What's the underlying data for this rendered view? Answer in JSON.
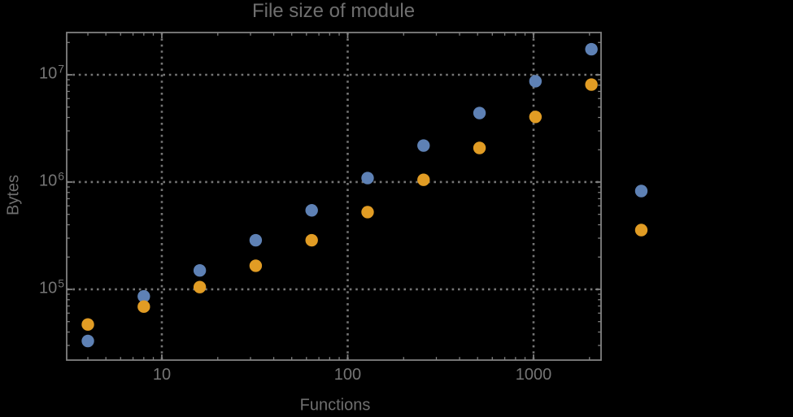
{
  "colors": {
    "background": "#000000",
    "frame": "#818181",
    "grid": "#757575",
    "tick_text": "#757575",
    "label_text": "#6f6f6f",
    "series_blue": "#5E81B5",
    "series_orange": "#E19C24"
  },
  "chart_data": {
    "type": "scatter",
    "title": "File size of module",
    "xlabel": "Functions",
    "ylabel": "Bytes",
    "x_scale": "log",
    "y_scale": "log",
    "grid": "dotted-at-decades",
    "legend": "none",
    "xlim": [
      3.077,
      2308
    ],
    "ylim": [
      21900,
      24770000
    ],
    "x": [
      4,
      8,
      16,
      32,
      64,
      128,
      256,
      512,
      1024,
      2048,
      3800
    ],
    "series": [
      {
        "name": "blue",
        "color": "#5E81B5",
        "values": [
          33000,
          86000,
          150000,
          287000,
          545000,
          1090000,
          2190000,
          4400000,
          8700000,
          17300000,
          825000
        ]
      },
      {
        "name": "orange",
        "color": "#E19C24",
        "values": [
          47000,
          69000,
          105000,
          166000,
          287000,
          525000,
          1050000,
          2080000,
          4050000,
          8100000,
          357000
        ]
      }
    ],
    "x_ticks": [
      {
        "label": "10",
        "value": 10
      },
      {
        "label": "100",
        "value": 100
      },
      {
        "label": "1000",
        "value": 1000
      }
    ],
    "y_ticks": [
      {
        "base": "10",
        "exp": "5",
        "value": 100000
      },
      {
        "base": "10",
        "exp": "6",
        "value": 1000000
      },
      {
        "base": "10",
        "exp": "7",
        "value": 10000000
      }
    ]
  }
}
